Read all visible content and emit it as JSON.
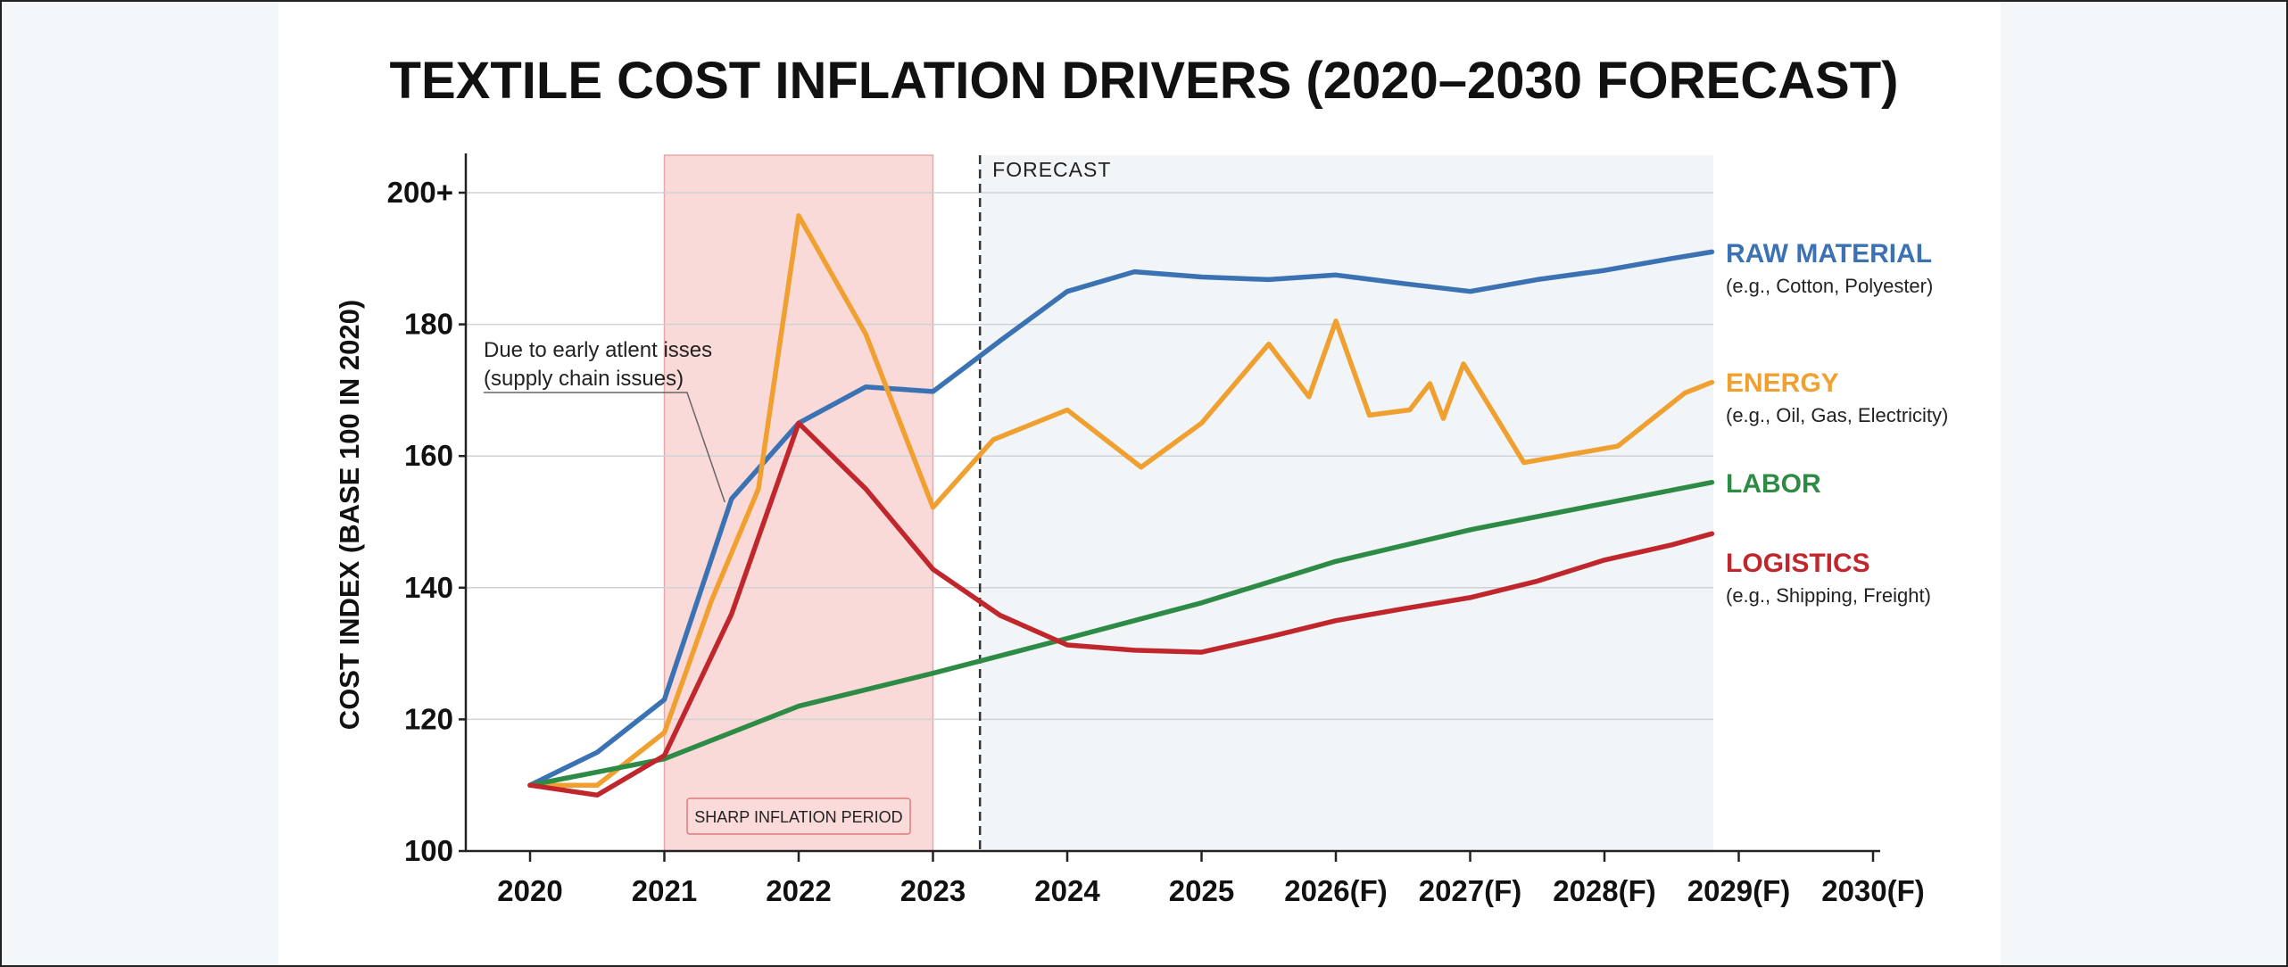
{
  "chart_data": {
    "type": "line",
    "title": "TEXTILE COST INFLATION DRIVERS (2020–2030 FORECAST)",
    "ylabel": "COST INDEX (BASE 100 IN 2020)",
    "xlabel": "",
    "xlim": [
      2020,
      2030
    ],
    "ylim": [
      100,
      205
    ],
    "x_ticks": [
      {
        "x": 2020,
        "label": "2020"
      },
      {
        "x": 2021,
        "label": "2021"
      },
      {
        "x": 2022,
        "label": "2022"
      },
      {
        "x": 2023,
        "label": "2023"
      },
      {
        "x": 2024,
        "label": "2024"
      },
      {
        "x": 2025,
        "label": "2025"
      },
      {
        "x": 2026,
        "label": "2026(F)"
      },
      {
        "x": 2027,
        "label": "2027(F)"
      },
      {
        "x": 2028,
        "label": "2028(F)"
      },
      {
        "x": 2029,
        "label": "2029(F)"
      },
      {
        "x": 2030,
        "label": "2030(F)"
      }
    ],
    "y_ticks": [
      {
        "y": 100,
        "label": "100"
      },
      {
        "y": 120,
        "label": "120"
      },
      {
        "y": 140,
        "label": "140"
      },
      {
        "y": 160,
        "label": "160"
      },
      {
        "y": 180,
        "label": "180"
      },
      {
        "y": 200,
        "label": "200+"
      }
    ],
    "grid": true,
    "series": [
      {
        "name": "RAW MATERIAL",
        "description": "(e.g., Cotton, Polyester)",
        "color": "#3a72b4",
        "x": [
          2020,
          2020.5,
          2021,
          2021.5,
          2022,
          2022.5,
          2023,
          2023.5,
          2024,
          2024.5,
          2025,
          2025.5,
          2026,
          2026.5,
          2027,
          2027.5,
          2028,
          2028.5,
          2028.8
        ],
        "y": [
          110,
          115,
          123,
          153.5,
          165,
          170.5,
          169.8,
          177.5,
          185,
          188,
          187.2,
          186.8,
          187.5,
          186.2,
          185,
          186.8,
          188.2,
          190,
          191
        ]
      },
      {
        "name": "ENERGY",
        "description": "(e.g., Oil, Gas, Electricity)",
        "color": "#f0a030",
        "x": [
          2020,
          2020.5,
          2021,
          2021.35,
          2021.7,
          2022,
          2022.5,
          2023,
          2023.45,
          2024,
          2024.55,
          2025,
          2025.5,
          2025.8,
          2026,
          2026.25,
          2026.55,
          2026.7,
          2026.8,
          2026.95,
          2027.4,
          2028.1,
          2028.6,
          2028.8
        ],
        "y": [
          110,
          110,
          118,
          138,
          155,
          196.5,
          178.5,
          152.2,
          162.5,
          167,
          158.3,
          165,
          177,
          169,
          180.5,
          166.2,
          167,
          171,
          165.7,
          174,
          159,
          161.5,
          169.6,
          171.2
        ]
      },
      {
        "name": "LABOR",
        "description": "",
        "color": "#2e8b45",
        "x": [
          2020,
          2021,
          2022,
          2023,
          2024,
          2025,
          2026,
          2027,
          2028,
          2028.8
        ],
        "y": [
          110,
          114,
          122,
          127,
          132.3,
          137.7,
          144,
          148.8,
          152.8,
          156
        ]
      },
      {
        "name": "LOGISTICS",
        "description": "(e.g., Shipping, Freight)",
        "color": "#c0272d",
        "x": [
          2020,
          2020.5,
          2021,
          2021.5,
          2022,
          2022.5,
          2023,
          2023.5,
          2024,
          2024.5,
          2025,
          2025.5,
          2026,
          2026.5,
          2027,
          2027.5,
          2028,
          2028.5,
          2028.8
        ],
        "y": [
          110,
          108.5,
          114.5,
          136,
          165,
          155,
          142.8,
          135.8,
          131.3,
          130.5,
          130.2,
          132.5,
          135,
          136.8,
          138.5,
          141,
          144.2,
          146.5,
          148.2
        ]
      }
    ],
    "shaded_region": {
      "x_start": 2021,
      "x_end": 2023,
      "label": "SHARP INFLATION PERIOD",
      "color": "#f8cccc"
    },
    "forecast_line": {
      "x": 2023.35,
      "label": "FORECAST"
    },
    "annotation": {
      "lines": [
        "Due to early atlent isses",
        "(supply chain issues)"
      ],
      "target": {
        "x": 2021.45,
        "y": 153
      }
    },
    "legend_placement": "right"
  }
}
